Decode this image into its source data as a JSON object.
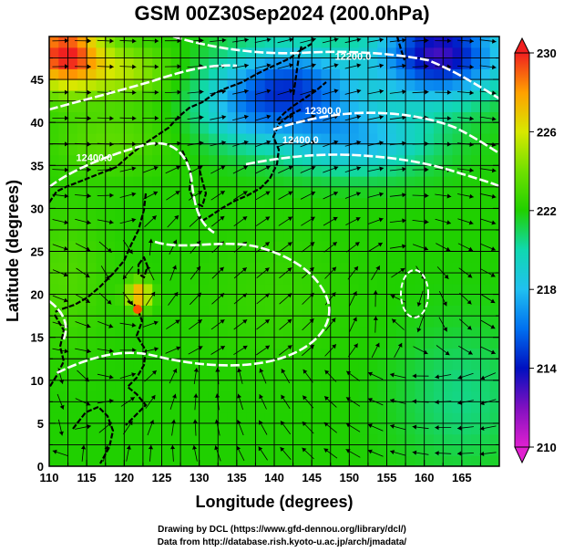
{
  "title": "GSM 00Z30Sep2024 (200.0hPa)",
  "xlabel": "Longitude (degrees)",
  "ylabel": "Latitude  (degrees)",
  "credit_line1": "Drawing by DCL (https://www.gfd-dennou.org/library/dcl/)",
  "credit_line2": "Data from http://database.rish.kyoto-u.ac.jp/arch/jmadata/",
  "map": {
    "lon_range": [
      110,
      170
    ],
    "lat_range": [
      0,
      50
    ],
    "lon_ticks": [
      110,
      115,
      120,
      125,
      130,
      135,
      140,
      145,
      150,
      155,
      160,
      165
    ],
    "lat_ticks": [
      0,
      5,
      10,
      15,
      20,
      25,
      30,
      35,
      40,
      45
    ],
    "grid_step_deg": 2.5,
    "contour_labels": [
      {
        "text": "12200.0",
        "lon": 150.5,
        "lat": 47.3
      },
      {
        "text": "12300.0",
        "lon": 146.5,
        "lat": 41.0
      },
      {
        "text": "12400.0",
        "lon": 143.5,
        "lat": 37.6
      },
      {
        "text": "12400.0",
        "lon": 116.0,
        "lat": 35.5
      }
    ],
    "color_stops": [
      {
        "v": 210,
        "c": "#e020d0"
      },
      {
        "v": 212,
        "c": "#8010c0"
      },
      {
        "v": 214,
        "c": "#0010c0"
      },
      {
        "v": 216,
        "c": "#0070f0"
      },
      {
        "v": 218,
        "c": "#20c0f0"
      },
      {
        "v": 220,
        "c": "#10d8b0"
      },
      {
        "v": 222,
        "c": "#20d000"
      },
      {
        "v": 224,
        "c": "#70e000"
      },
      {
        "v": 226,
        "c": "#d8e800"
      },
      {
        "v": 228,
        "c": "#ffa000"
      },
      {
        "v": 230,
        "c": "#f02020"
      }
    ]
  },
  "colorbar": {
    "min": 210,
    "max": 230,
    "tick_labels": [
      "210",
      "214",
      "218",
      "222",
      "226",
      "230"
    ]
  }
}
